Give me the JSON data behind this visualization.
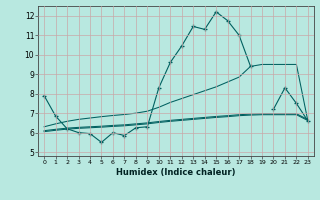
{
  "title": "",
  "xlabel": "Humidex (Indice chaleur)",
  "xlim": [
    -0.5,
    23.5
  ],
  "ylim": [
    4.8,
    12.5
  ],
  "xticks": [
    0,
    1,
    2,
    3,
    4,
    5,
    6,
    7,
    8,
    9,
    10,
    11,
    12,
    13,
    14,
    15,
    16,
    17,
    18,
    19,
    20,
    21,
    22,
    23
  ],
  "yticks": [
    5,
    6,
    7,
    8,
    9,
    10,
    11,
    12
  ],
  "bg_color": "#b8e8e0",
  "grid_color": "#c8a8a8",
  "line_color": "#006060",
  "series": [
    {
      "x": [
        0,
        1,
        2,
        3,
        4,
        5,
        6,
        7,
        8,
        9,
        10,
        11,
        12,
        13,
        14,
        15,
        16,
        17,
        18
      ],
      "y": [
        7.9,
        6.85,
        6.2,
        6.0,
        5.95,
        5.5,
        6.0,
        5.85,
        6.25,
        6.3,
        8.3,
        9.6,
        10.45,
        11.45,
        11.3,
        12.2,
        11.75,
        11.0,
        9.4
      ],
      "marker": true
    },
    {
      "x": [
        20,
        21,
        22,
        23
      ],
      "y": [
        7.2,
        8.3,
        7.5,
        6.6
      ],
      "marker": true
    },
    {
      "x": [
        0,
        1,
        2,
        3,
        4,
        5,
        6,
        7,
        8,
        9,
        10,
        11,
        12,
        13,
        14,
        15,
        16,
        17,
        18,
        19,
        20,
        21,
        22,
        23
      ],
      "y": [
        6.3,
        6.45,
        6.58,
        6.68,
        6.75,
        6.82,
        6.88,
        6.93,
        7.0,
        7.1,
        7.3,
        7.55,
        7.75,
        7.95,
        8.15,
        8.35,
        8.6,
        8.85,
        9.4,
        9.5,
        9.5,
        9.5,
        9.5,
        6.6
      ],
      "marker": false
    },
    {
      "x": [
        0,
        1,
        2,
        3,
        4,
        5,
        6,
        7,
        8,
        9,
        10,
        11,
        12,
        13,
        14,
        15,
        16,
        17,
        18,
        19,
        20,
        21,
        22,
        23
      ],
      "y": [
        6.05,
        6.12,
        6.18,
        6.22,
        6.25,
        6.28,
        6.32,
        6.35,
        6.4,
        6.45,
        6.52,
        6.58,
        6.63,
        6.68,
        6.73,
        6.78,
        6.82,
        6.87,
        6.9,
        6.92,
        6.92,
        6.92,
        6.92,
        6.62
      ],
      "marker": false
    },
    {
      "x": [
        0,
        1,
        2,
        3,
        4,
        5,
        6,
        7,
        8,
        9,
        10,
        11,
        12,
        13,
        14,
        15,
        16,
        17,
        18,
        19,
        20,
        21,
        22,
        23
      ],
      "y": [
        6.1,
        6.17,
        6.23,
        6.27,
        6.3,
        6.33,
        6.37,
        6.4,
        6.45,
        6.5,
        6.57,
        6.63,
        6.68,
        6.73,
        6.78,
        6.83,
        6.87,
        6.92,
        6.95,
        6.97,
        6.97,
        6.97,
        6.97,
        6.67
      ],
      "marker": false
    }
  ]
}
